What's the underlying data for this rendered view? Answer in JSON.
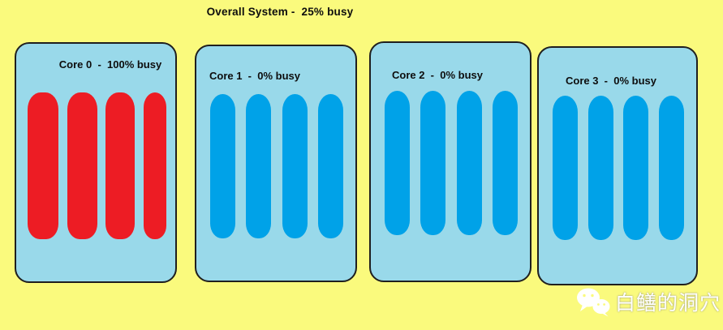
{
  "title": "Overall System -  25% busy",
  "cores": [
    {
      "name": "Core 0",
      "label": "Core 0  -  100% busy",
      "busy_percent": 100,
      "bar_color": "#ED1C24",
      "bar_count": 4
    },
    {
      "name": "Core 1",
      "label": "Core 1  -  0% busy",
      "busy_percent": 0,
      "bar_color": "#00A2E8",
      "bar_count": 4
    },
    {
      "name": "Core 2",
      "label": "Core 2  -  0% busy",
      "busy_percent": 0,
      "bar_color": "#00A2E8",
      "bar_count": 4
    },
    {
      "name": "Core 3",
      "label": "Core 3  -  0% busy",
      "busy_percent": 0,
      "bar_color": "#00A2E8",
      "bar_count": 4
    }
  ],
  "watermark": {
    "text": "白鳝的洞穴",
    "icon": "wechat-icon"
  },
  "colors": {
    "background": "#FAFA7D",
    "panel_fill": "#99D9EA",
    "panel_border": "#1F1F1F",
    "busy_bar": "#ED1C24",
    "idle_bar": "#00A2E8",
    "text": "#0D0D0D",
    "watermark_text": "#FFFFFF"
  }
}
